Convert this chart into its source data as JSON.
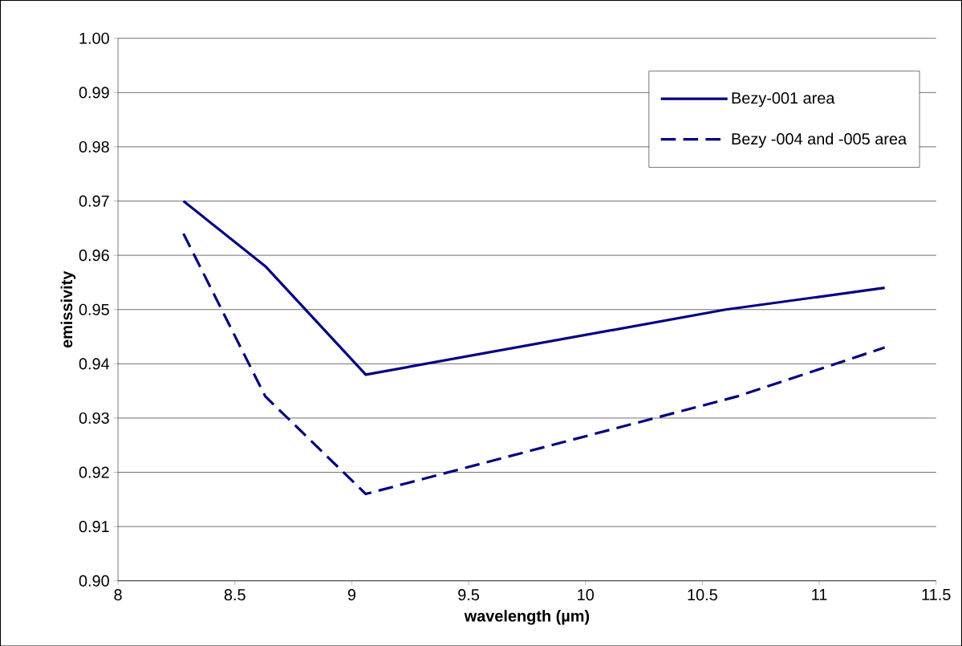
{
  "chart_data": {
    "type": "line",
    "xlabel": "wavelength (µm)",
    "ylabel": "emissivity",
    "xlim": [
      8,
      11.5
    ],
    "xticks": [
      8,
      8.5,
      9,
      9.5,
      10,
      10.5,
      11,
      11.5
    ],
    "ylim": [
      0.9,
      1.0
    ],
    "yticks": [
      {
        "value": 0.9,
        "label": "0.90"
      },
      0.91,
      0.92,
      0.93,
      0.94,
      0.95,
      0.96,
      0.97,
      0.98,
      0.99,
      {
        "value": 1.0,
        "label": "1.00"
      }
    ],
    "grid": "y",
    "legend": "top right",
    "marker": "none",
    "series": [
      {
        "name": "Bezy-001 area",
        "color": "#000080",
        "line_style": "solid",
        "x": [
          8.28,
          8.63,
          9.06,
          10.6,
          11.28
        ],
        "values": [
          0.97,
          0.958,
          0.938,
          0.95,
          0.954
        ]
      },
      {
        "name": "Bezy -004 and -005 area",
        "color": "#000080",
        "line_style": "dashed",
        "x": [
          8.28,
          8.63,
          9.06,
          10.65,
          11.28
        ],
        "values": [
          0.964,
          0.934,
          0.916,
          0.934,
          0.943
        ]
      }
    ]
  }
}
